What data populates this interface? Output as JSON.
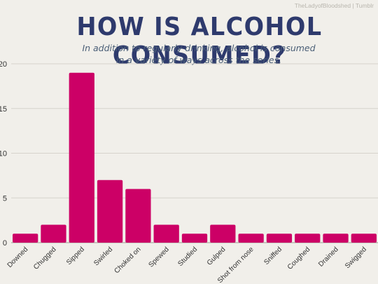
{
  "credit": "TheLadyofBloodshed | Tumblr",
  "chart_data": {
    "type": "bar",
    "title": "HOW IS ALCOHOL CONSUMED?",
    "subtitle_line1": "In addition to regularly drinking, alcohol is consumed",
    "subtitle_line2": "in a variety of ways across the series.",
    "categories": [
      "Downed",
      "Chugged",
      "Sipped",
      "Swirled",
      "Choked on",
      "Spewed",
      "Studied",
      "Gulped",
      "Shot from nose",
      "Sniffed",
      "Coughed",
      "Drained",
      "Swigged"
    ],
    "values": [
      1,
      2,
      19,
      7,
      6,
      2,
      1,
      2,
      1,
      1,
      1,
      1,
      1
    ],
    "yticks": [
      0,
      5,
      10,
      15,
      20
    ],
    "ylim": [
      0,
      20
    ],
    "grid": true,
    "bar_color": "#cc0066",
    "grid_color": "#d6d3cc"
  }
}
